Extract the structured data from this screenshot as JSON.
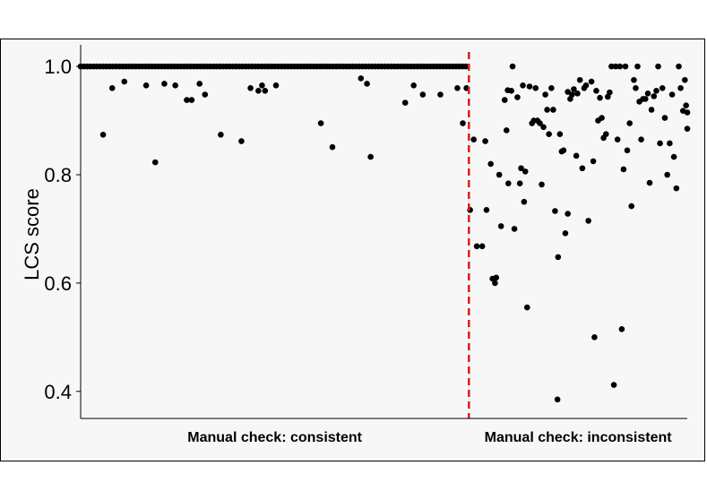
{
  "chart_data": {
    "type": "scatter",
    "ylabel": "LCS score",
    "ylim": [
      0.35,
      1.03
    ],
    "yticks": [
      0.4,
      0.6,
      0.8,
      1.0
    ],
    "ytick_labels": [
      "0.4",
      "0.6",
      "0.8",
      "1.0"
    ],
    "xlim": [
      0,
      100
    ],
    "grid": false,
    "categories": [
      "Manual check: consistent",
      "Manual check: inconsistent"
    ],
    "divider": {
      "x": 64,
      "color": "#e31a1c",
      "style": "dashed"
    },
    "series": [
      {
        "group": "Manual check: consistent",
        "points": [
          {
            "x": 3.7,
            "y": 0.874
          },
          {
            "x": 5.2,
            "y": 0.96
          },
          {
            "x": 7.2,
            "y": 0.972
          },
          {
            "x": 10.8,
            "y": 0.965
          },
          {
            "x": 12.3,
            "y": 0.823
          },
          {
            "x": 13.8,
            "y": 0.968
          },
          {
            "x": 15.6,
            "y": 0.965
          },
          {
            "x": 17.5,
            "y": 0.938
          },
          {
            "x": 18.3,
            "y": 0.938
          },
          {
            "x": 19.6,
            "y": 0.968
          },
          {
            "x": 20.5,
            "y": 0.948
          },
          {
            "x": 23.1,
            "y": 0.874
          },
          {
            "x": 26.5,
            "y": 0.862
          },
          {
            "x": 28.0,
            "y": 0.96
          },
          {
            "x": 29.3,
            "y": 0.955
          },
          {
            "x": 29.9,
            "y": 0.965
          },
          {
            "x": 30.4,
            "y": 0.955
          },
          {
            "x": 32.2,
            "y": 0.965
          },
          {
            "x": 39.6,
            "y": 0.895
          },
          {
            "x": 41.5,
            "y": 0.851
          },
          {
            "x": 46.2,
            "y": 0.978
          },
          {
            "x": 47.2,
            "y": 0.968
          },
          {
            "x": 47.8,
            "y": 0.833
          },
          {
            "x": 53.5,
            "y": 0.933
          },
          {
            "x": 54.9,
            "y": 0.965
          },
          {
            "x": 56.4,
            "y": 0.948
          },
          {
            "x": 59.3,
            "y": 0.948
          },
          {
            "x": 62.1,
            "y": 0.96
          },
          {
            "x": 63.0,
            "y": 0.895
          },
          {
            "x": 63.6,
            "y": 0.96
          }
        ],
        "at_one": {
          "count": 120,
          "x_start": 0,
          "x_end": 63.5,
          "y": 1.0
        }
      },
      {
        "group": "Manual check: inconsistent",
        "points": [
          {
            "x": 64.2,
            "y": 0.735
          },
          {
            "x": 64.8,
            "y": 0.865
          },
          {
            "x": 65.3,
            "y": 0.668
          },
          {
            "x": 66.2,
            "y": 0.668
          },
          {
            "x": 66.7,
            "y": 0.862
          },
          {
            "x": 66.9,
            "y": 0.735
          },
          {
            "x": 67.6,
            "y": 0.82
          },
          {
            "x": 67.9,
            "y": 0.608
          },
          {
            "x": 68.3,
            "y": 0.6
          },
          {
            "x": 68.5,
            "y": 0.61
          },
          {
            "x": 69.0,
            "y": 0.8
          },
          {
            "x": 69.3,
            "y": 0.705
          },
          {
            "x": 69.9,
            "y": 0.938
          },
          {
            "x": 70.2,
            "y": 0.882
          },
          {
            "x": 70.4,
            "y": 0.956
          },
          {
            "x": 70.5,
            "y": 0.784
          },
          {
            "x": 71.0,
            "y": 0.955
          },
          {
            "x": 71.2,
            "y": 1.0
          },
          {
            "x": 71.5,
            "y": 0.7
          },
          {
            "x": 72.0,
            "y": 0.943
          },
          {
            "x": 72.4,
            "y": 0.784
          },
          {
            "x": 72.6,
            "y": 0.812
          },
          {
            "x": 72.9,
            "y": 0.965
          },
          {
            "x": 73.1,
            "y": 0.75
          },
          {
            "x": 73.3,
            "y": 0.806
          },
          {
            "x": 73.6,
            "y": 0.555
          },
          {
            "x": 74.0,
            "y": 0.963
          },
          {
            "x": 74.4,
            "y": 0.895
          },
          {
            "x": 74.7,
            "y": 0.9
          },
          {
            "x": 75.0,
            "y": 0.96
          },
          {
            "x": 75.3,
            "y": 0.9
          },
          {
            "x": 75.7,
            "y": 0.895
          },
          {
            "x": 76.0,
            "y": 0.782
          },
          {
            "x": 76.3,
            "y": 0.888
          },
          {
            "x": 76.6,
            "y": 0.948
          },
          {
            "x": 76.9,
            "y": 0.92
          },
          {
            "x": 77.2,
            "y": 0.875
          },
          {
            "x": 77.6,
            "y": 0.96
          },
          {
            "x": 77.9,
            "y": 0.92
          },
          {
            "x": 78.2,
            "y": 0.733
          },
          {
            "x": 78.6,
            "y": 0.385
          },
          {
            "x": 78.7,
            "y": 0.648
          },
          {
            "x": 79.0,
            "y": 0.875
          },
          {
            "x": 79.3,
            "y": 0.843
          },
          {
            "x": 79.6,
            "y": 0.845
          },
          {
            "x": 79.9,
            "y": 0.692
          },
          {
            "x": 80.3,
            "y": 0.728
          },
          {
            "x": 80.3,
            "y": 0.953
          },
          {
            "x": 80.7,
            "y": 0.94
          },
          {
            "x": 81.0,
            "y": 0.948
          },
          {
            "x": 81.3,
            "y": 0.958
          },
          {
            "x": 81.7,
            "y": 0.835
          },
          {
            "x": 81.9,
            "y": 0.95
          },
          {
            "x": 82.3,
            "y": 0.975
          },
          {
            "x": 82.7,
            "y": 0.812
          },
          {
            "x": 83.0,
            "y": 0.96
          },
          {
            "x": 83.3,
            "y": 0.965
          },
          {
            "x": 83.7,
            "y": 0.715
          },
          {
            "x": 84.2,
            "y": 0.972
          },
          {
            "x": 84.5,
            "y": 0.825
          },
          {
            "x": 84.7,
            "y": 0.5
          },
          {
            "x": 85.0,
            "y": 0.955
          },
          {
            "x": 85.3,
            "y": 0.9
          },
          {
            "x": 85.6,
            "y": 0.942
          },
          {
            "x": 85.9,
            "y": 0.905
          },
          {
            "x": 86.2,
            "y": 0.868
          },
          {
            "x": 86.6,
            "y": 0.875
          },
          {
            "x": 86.9,
            "y": 0.944
          },
          {
            "x": 87.2,
            "y": 0.952
          },
          {
            "x": 87.5,
            "y": 1.0
          },
          {
            "x": 87.9,
            "y": 0.412
          },
          {
            "x": 88.2,
            "y": 1.0
          },
          {
            "x": 88.5,
            "y": 0.865
          },
          {
            "x": 88.9,
            "y": 1.0
          },
          {
            "x": 89.2,
            "y": 0.515
          },
          {
            "x": 89.5,
            "y": 0.81
          },
          {
            "x": 89.8,
            "y": 1.0
          },
          {
            "x": 90.1,
            "y": 0.845
          },
          {
            "x": 90.5,
            "y": 0.895
          },
          {
            "x": 90.8,
            "y": 0.742
          },
          {
            "x": 91.2,
            "y": 0.975
          },
          {
            "x": 91.5,
            "y": 0.96
          },
          {
            "x": 91.8,
            "y": 1.0
          },
          {
            "x": 92.1,
            "y": 0.935
          },
          {
            "x": 92.4,
            "y": 0.865
          },
          {
            "x": 92.7,
            "y": 0.94
          },
          {
            "x": 93.1,
            "y": 0.94
          },
          {
            "x": 93.5,
            "y": 0.95
          },
          {
            "x": 93.8,
            "y": 0.785
          },
          {
            "x": 94.1,
            "y": 0.92
          },
          {
            "x": 94.5,
            "y": 0.945
          },
          {
            "x": 94.9,
            "y": 0.955
          },
          {
            "x": 95.2,
            "y": 1.0
          },
          {
            "x": 95.5,
            "y": 0.858
          },
          {
            "x": 95.9,
            "y": 0.96
          },
          {
            "x": 96.3,
            "y": 0.905
          },
          {
            "x": 96.7,
            "y": 0.8
          },
          {
            "x": 97.1,
            "y": 0.858
          },
          {
            "x": 97.5,
            "y": 0.948
          },
          {
            "x": 97.8,
            "y": 0.833
          },
          {
            "x": 98.2,
            "y": 0.775
          },
          {
            "x": 98.6,
            "y": 1.0
          },
          {
            "x": 98.9,
            "y": 0.96
          },
          {
            "x": 99.3,
            "y": 0.918
          },
          {
            "x": 99.6,
            "y": 0.975
          },
          {
            "x": 99.8,
            "y": 0.928
          },
          {
            "x": 100.0,
            "y": 0.885
          },
          {
            "x": 100.0,
            "y": 0.915
          }
        ]
      }
    ]
  }
}
